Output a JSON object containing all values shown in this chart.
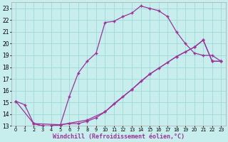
{
  "background_color": "#c8eded",
  "grid_color": "#9fd8d8",
  "line_color": "#993399",
  "marker": "+",
  "markersize": 3.5,
  "linewidth": 0.9,
  "xlabel": "Windchill (Refroidissement éolien,°C)",
  "xlabel_fontsize": 6.0,
  "xlabel_color": "#993399",
  "xtick_fontsize": 4.8,
  "ytick_fontsize": 5.5,
  "xlim": [
    -0.5,
    23.5
  ],
  "ylim": [
    13,
    23.5
  ],
  "xticks": [
    0,
    1,
    2,
    3,
    4,
    5,
    6,
    7,
    8,
    9,
    10,
    11,
    12,
    13,
    14,
    15,
    16,
    17,
    18,
    19,
    20,
    21,
    22,
    23
  ],
  "yticks": [
    13,
    14,
    15,
    16,
    17,
    18,
    19,
    20,
    21,
    22,
    23
  ],
  "curve1_x": [
    0,
    1,
    2,
    3,
    4,
    5,
    6,
    7,
    8,
    9,
    10,
    11,
    12,
    13,
    14,
    15,
    16,
    17,
    18,
    19,
    20,
    21,
    22,
    23
  ],
  "curve1_y": [
    15.1,
    14.8,
    13.2,
    13.0,
    13.0,
    13.1,
    15.5,
    17.5,
    18.5,
    19.2,
    21.8,
    21.9,
    22.3,
    22.6,
    23.2,
    23.0,
    22.8,
    22.3,
    21.0,
    20.0,
    19.2,
    19.0,
    19.0,
    18.5
  ],
  "curve2_x": [
    2,
    3,
    4,
    5,
    6,
    7,
    8,
    9,
    10,
    11,
    12,
    13,
    14,
    15,
    16,
    17,
    18,
    19,
    20,
    21,
    22,
    23
  ],
  "curve2_y": [
    13.2,
    13.0,
    13.0,
    13.1,
    13.2,
    13.2,
    13.4,
    13.7,
    14.2,
    14.9,
    15.5,
    16.1,
    16.8,
    17.4,
    17.9,
    18.4,
    18.9,
    19.3,
    19.7,
    20.3,
    18.5,
    18.5
  ],
  "curve3_x": [
    0,
    2,
    5,
    8,
    10,
    13,
    15,
    18,
    20,
    21,
    22,
    23
  ],
  "curve3_y": [
    15.1,
    13.2,
    13.1,
    13.5,
    14.2,
    16.1,
    17.4,
    18.9,
    19.7,
    20.3,
    18.5,
    18.5
  ]
}
